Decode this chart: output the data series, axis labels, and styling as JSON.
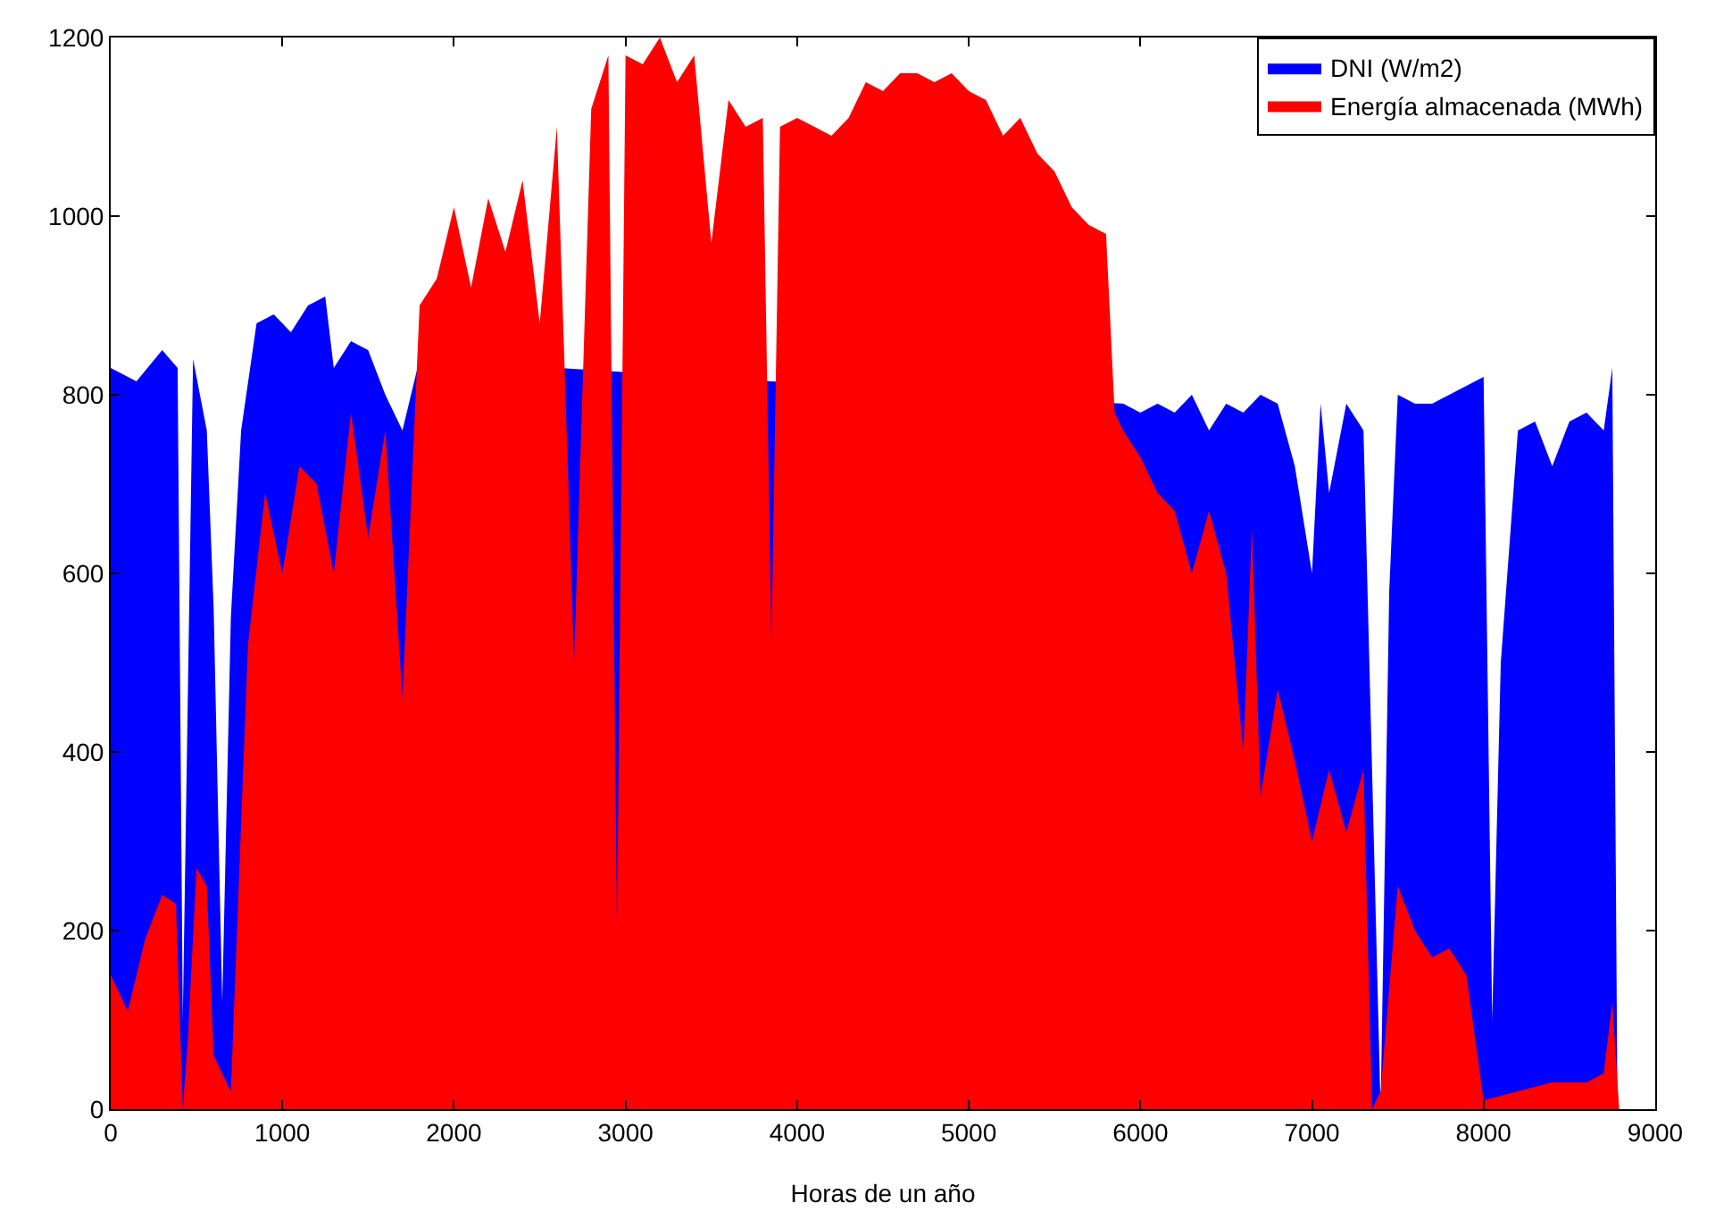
{
  "chart_data": {
    "type": "area",
    "xlabel": "Horas de un año",
    "xlim": [
      0,
      9000
    ],
    "xticks": [
      0,
      1000,
      2000,
      3000,
      4000,
      5000,
      6000,
      7000,
      8000,
      9000
    ],
    "ylim": [
      0,
      1200
    ],
    "yticks": [
      0,
      200,
      400,
      600,
      800,
      1000,
      1200
    ],
    "grid": false,
    "legend": "top right",
    "series": [
      {
        "name": "DNI (W/m2)",
        "color": "#0000ff",
        "x": [
          0,
          150,
          300,
          390,
          420,
          480,
          560,
          600,
          650,
          700,
          760,
          800,
          850,
          950,
          1050,
          1150,
          1250,
          1300,
          1400,
          1500,
          1600,
          1700,
          1800,
          1850,
          2800,
          2850,
          2900,
          3750,
          3800,
          3850,
          5850,
          5900,
          6000,
          6100,
          6200,
          6300,
          6400,
          6500,
          6600,
          6700,
          6800,
          6900,
          7000,
          7050,
          7100,
          7200,
          7300,
          7400,
          7450,
          7500,
          7600,
          7700,
          7800,
          7900,
          8000,
          8050,
          8100,
          8200,
          8300,
          8400,
          8500,
          8600,
          8700,
          8750,
          8780
        ],
        "values": [
          830,
          815,
          850,
          830,
          100,
          840,
          760,
          560,
          120,
          550,
          760,
          null,
          880,
          890,
          870,
          900,
          910,
          830,
          860,
          850,
          800,
          760,
          840,
          null,
          null,
          null,
          null,
          null,
          null,
          null,
          null,
          790,
          780,
          790,
          780,
          800,
          760,
          790,
          780,
          800,
          790,
          720,
          600,
          790,
          690,
          790,
          760,
          0,
          580,
          800,
          790,
          790,
          800,
          810,
          820,
          100,
          500,
          760,
          770,
          720,
          770,
          780,
          760,
          830,
          0
        ]
      },
      {
        "name": "Energía almacenada (MWh)",
        "color": "#ff0000",
        "x": [
          0,
          100,
          200,
          300,
          380,
          420,
          450,
          500,
          560,
          600,
          700,
          800,
          900,
          1000,
          1100,
          1200,
          1300,
          1400,
          1500,
          1600,
          1700,
          1800,
          1900,
          2000,
          2100,
          2200,
          2300,
          2400,
          2500,
          2600,
          2700,
          2800,
          2900,
          2950,
          3000,
          3100,
          3200,
          3300,
          3400,
          3500,
          3600,
          3700,
          3800,
          3850,
          3900,
          4000,
          4100,
          4200,
          4300,
          4400,
          4500,
          4600,
          4700,
          4800,
          4900,
          5000,
          5100,
          5200,
          5300,
          5400,
          5500,
          5600,
          5700,
          5800,
          5850,
          5900,
          6000,
          6100,
          6200,
          6300,
          6400,
          6500,
          6600,
          6650,
          6700,
          6800,
          6900,
          7000,
          7100,
          7200,
          7300,
          7350,
          7400,
          7500,
          7600,
          7700,
          7800,
          7900,
          8000,
          8200,
          8400,
          8600,
          8700,
          8750,
          8790
        ],
        "values": [
          150,
          110,
          190,
          240,
          230,
          0,
          80,
          270,
          250,
          60,
          20,
          520,
          690,
          600,
          720,
          700,
          600,
          780,
          640,
          760,
          460,
          900,
          930,
          1010,
          920,
          1020,
          960,
          1040,
          880,
          1100,
          500,
          1120,
          1180,
          200,
          1180,
          1170,
          1200,
          1150,
          1180,
          970,
          1130,
          1100,
          1110,
          520,
          1100,
          1110,
          1100,
          1090,
          1110,
          1150,
          1140,
          1160,
          1160,
          1150,
          1160,
          1140,
          1130,
          1090,
          1110,
          1070,
          1050,
          1010,
          990,
          980,
          780,
          760,
          730,
          690,
          670,
          600,
          670,
          600,
          400,
          650,
          350,
          470,
          390,
          300,
          380,
          310,
          380,
          0,
          20,
          250,
          200,
          170,
          180,
          150,
          10,
          20,
          30,
          30,
          40,
          120,
          0
        ]
      }
    ]
  }
}
